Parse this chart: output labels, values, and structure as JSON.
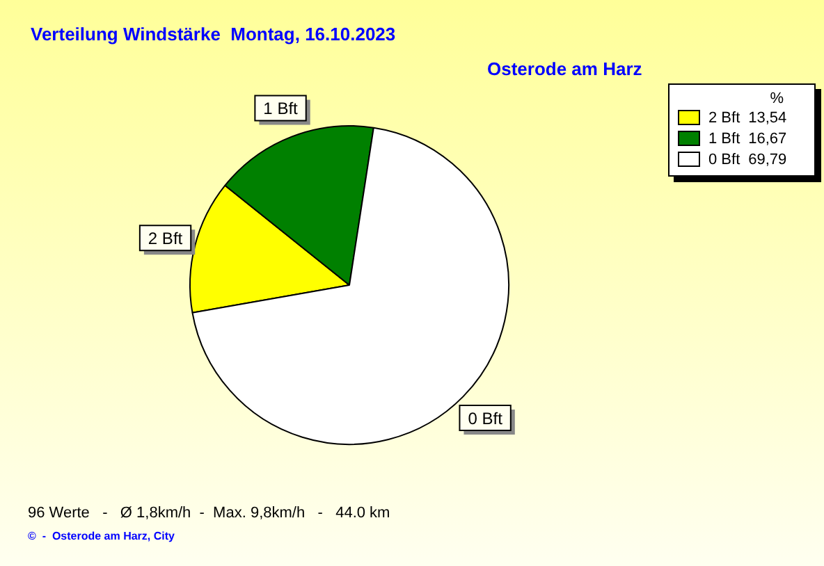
{
  "chart_data": {
    "type": "pie",
    "title": "Verteilung Windstärke  Montag, 16.10.2023",
    "subtitle": "Osterode am Harz",
    "categories": [
      "2 Bft",
      "1 Bft",
      "0 Bft"
    ],
    "values": [
      13.54,
      16.67,
      69.79
    ],
    "colors": [
      "#ffff00",
      "#008000",
      "#ffffff"
    ],
    "value_labels": [
      "13,54",
      "16,67",
      "69,79"
    ],
    "legend_title": "%",
    "legend": "top right",
    "annotations": [
      "96 Werte   -   Ø 1,8km/h  -  Max. 9,8km/h   -   44.0 km",
      "©  -  Osterode am Harz, City"
    ]
  }
}
